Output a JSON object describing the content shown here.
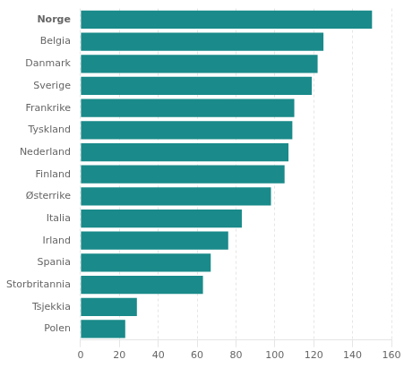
{
  "chart_data": {
    "type": "bar",
    "orientation": "horizontal",
    "categories": [
      "Norge",
      "Belgia",
      "Danmark",
      "Sverige",
      "Frankrike",
      "Tyskland",
      "Nederland",
      "Finland",
      "Østerrike",
      "Italia",
      "Irland",
      "Spania",
      "Storbritannia",
      "Tsjekkia",
      "Polen"
    ],
    "values": [
      150,
      125,
      122,
      119,
      110,
      109,
      107,
      105,
      98,
      83,
      76,
      67,
      63,
      29,
      23
    ],
    "color": "#1a8a8a",
    "xlim": [
      0,
      160
    ],
    "xticks": [
      0,
      20,
      40,
      60,
      80,
      100,
      120,
      140,
      160
    ],
    "grid": true
  }
}
